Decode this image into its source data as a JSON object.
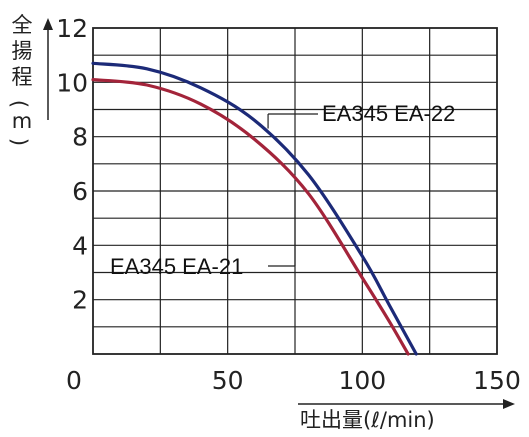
{
  "chart_data": {
    "type": "line",
    "ylabel": "全揚程(m)",
    "xlabel": "吐出量(ℓ/min)",
    "xlim": [
      0,
      150
    ],
    "ylim": [
      0,
      12
    ],
    "x_ticks": [
      "0",
      "50",
      "100",
      "150"
    ],
    "y_ticks": [
      "2",
      "4",
      "6",
      "8",
      "10",
      "12"
    ],
    "grid": true,
    "series": [
      {
        "name": "EA345 EA-22",
        "color": "#1c2a78",
        "points": [
          [
            0,
            10.7
          ],
          [
            20,
            10.5
          ],
          [
            40,
            9.8
          ],
          [
            60,
            8.6
          ],
          [
            80,
            6.6
          ],
          [
            100,
            3.6
          ],
          [
            110,
            1.8
          ],
          [
            120,
            0.0
          ]
        ],
        "label_anchor": [
          65,
          8.3
        ]
      },
      {
        "name": "EA345 EA-21",
        "color": "#a3243a",
        "points": [
          [
            0,
            10.1
          ],
          [
            20,
            9.9
          ],
          [
            40,
            9.2
          ],
          [
            60,
            7.9
          ],
          [
            80,
            5.9
          ],
          [
            100,
            2.8
          ],
          [
            110,
            1.2
          ],
          [
            117,
            0.0
          ]
        ],
        "label_anchor": [
          75,
          4.2
        ]
      }
    ]
  }
}
